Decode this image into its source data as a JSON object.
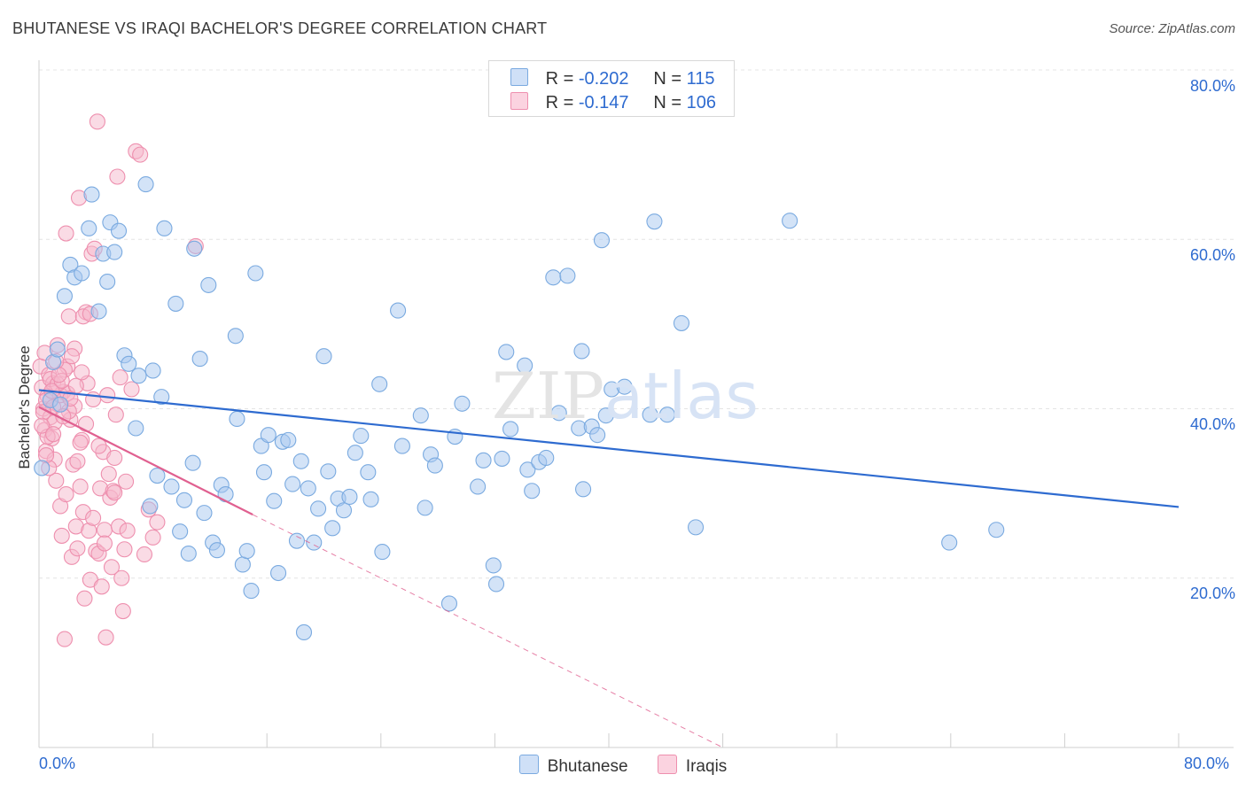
{
  "title": "BHUTANESE VS IRAQI BACHELOR'S DEGREE CORRELATION CHART",
  "source": "Source: ZipAtlas.com",
  "watermark": {
    "zip": "ZIP",
    "atlas": "atlas"
  },
  "legend": {
    "rows": [
      {
        "r_label": "R =",
        "r_value": "-0.202",
        "n_label": "N =",
        "n_value": "115",
        "color": "#a8c8f0"
      },
      {
        "r_label": "R =",
        "r_value": "-0.147",
        "n_label": "N =",
        "n_value": "106",
        "color": "#f5b8cc"
      }
    ]
  },
  "colors": {
    "blue_fill": "#a8c8f0",
    "blue_stroke": "#7aaae0",
    "blue_line": "#2e6bd0",
    "pink_fill": "#f5b8cc",
    "pink_stroke": "#ee8fae",
    "pink_line": "#e06090",
    "tick_text": "#2e6bd0",
    "grid": "#e4e4e4"
  },
  "chart_data": {
    "type": "scatter",
    "title": "BHUTANESE VS IRAQI BACHELOR'S DEGREE CORRELATION CHART",
    "xlabel": "",
    "ylabel": "Bachelor's Degree",
    "xlim": [
      0,
      80
    ],
    "ylim": [
      0,
      80
    ],
    "x_tick_labels": [
      "0.0%",
      "80.0%"
    ],
    "y_tick_labels": [
      "20.0%",
      "40.0%",
      "60.0%",
      "80.0%"
    ],
    "y_ticks": [
      20,
      40,
      60,
      80
    ],
    "grid": true,
    "legend_position": "top-center",
    "series": [
      {
        "name": "Bhutanese",
        "trend": {
          "x": [
            0,
            80
          ],
          "y": [
            42.2,
            28.4
          ]
        },
        "points": [
          [
            0.2,
            33
          ],
          [
            0.8,
            41
          ],
          [
            1.0,
            45.5
          ],
          [
            1.3,
            47
          ],
          [
            1.5,
            40.5
          ],
          [
            1.8,
            53.3
          ],
          [
            2.2,
            57
          ],
          [
            2.5,
            55.5
          ],
          [
            3.0,
            56
          ],
          [
            3.7,
            65.3
          ],
          [
            3.5,
            61.3
          ],
          [
            4.2,
            51.5
          ],
          [
            4.5,
            58.3
          ],
          [
            4.8,
            55
          ],
          [
            5.0,
            62
          ],
          [
            5.3,
            58.5
          ],
          [
            5.6,
            61
          ],
          [
            6.0,
            46.3
          ],
          [
            6.3,
            45.3
          ],
          [
            6.8,
            37.7
          ],
          [
            7.0,
            43.9
          ],
          [
            7.5,
            66.5
          ],
          [
            7.8,
            28.5
          ],
          [
            8.0,
            44.5
          ],
          [
            8.3,
            32.1
          ],
          [
            8.6,
            41.4
          ],
          [
            8.8,
            61.3
          ],
          [
            9.3,
            30.8
          ],
          [
            9.6,
            52.4
          ],
          [
            9.9,
            25.5
          ],
          [
            10.2,
            29.2
          ],
          [
            10.5,
            22.9
          ],
          [
            10.8,
            33.6
          ],
          [
            10.9,
            58.9
          ],
          [
            11.3,
            45.9
          ],
          [
            11.6,
            27.7
          ],
          [
            11.9,
            54.6
          ],
          [
            12.2,
            24.2
          ],
          [
            12.5,
            23.3
          ],
          [
            12.8,
            31.0
          ],
          [
            13.1,
            29.9
          ],
          [
            13.8,
            48.6
          ],
          [
            13.9,
            38.8
          ],
          [
            14.3,
            21.6
          ],
          [
            14.6,
            23.2
          ],
          [
            14.9,
            18.5
          ],
          [
            15.2,
            56.0
          ],
          [
            15.6,
            35.6
          ],
          [
            15.8,
            32.5
          ],
          [
            16.1,
            36.9
          ],
          [
            16.5,
            29.1
          ],
          [
            16.8,
            20.6
          ],
          [
            17.1,
            36.1
          ],
          [
            17.5,
            36.3
          ],
          [
            17.8,
            31.1
          ],
          [
            18.1,
            24.4
          ],
          [
            18.4,
            33.8
          ],
          [
            18.6,
            13.6
          ],
          [
            18.9,
            30.6
          ],
          [
            19.3,
            24.2
          ],
          [
            19.6,
            28.2
          ],
          [
            20.0,
            46.2
          ],
          [
            20.3,
            32.6
          ],
          [
            20.6,
            25.9
          ],
          [
            21.0,
            29.4
          ],
          [
            21.4,
            28.0
          ],
          [
            21.8,
            29.6
          ],
          [
            22.2,
            34.8
          ],
          [
            22.6,
            36.8
          ],
          [
            23.1,
            32.5
          ],
          [
            23.3,
            29.3
          ],
          [
            23.9,
            42.9
          ],
          [
            24.1,
            23.1
          ],
          [
            25.2,
            51.6
          ],
          [
            25.5,
            35.6
          ],
          [
            26.8,
            39.2
          ],
          [
            27.1,
            28.3
          ],
          [
            27.5,
            34.6
          ],
          [
            27.8,
            33.3
          ],
          [
            28.8,
            17.0
          ],
          [
            29.2,
            36.7
          ],
          [
            29.7,
            40.6
          ],
          [
            30.8,
            30.8
          ],
          [
            31.2,
            33.9
          ],
          [
            31.9,
            21.5
          ],
          [
            32.1,
            19.3
          ],
          [
            32.5,
            34.1
          ],
          [
            32.8,
            46.7
          ],
          [
            33.1,
            37.6
          ],
          [
            34.1,
            45.1
          ],
          [
            34.3,
            32.8
          ],
          [
            34.6,
            30.3
          ],
          [
            35.1,
            33.7
          ],
          [
            35.6,
            34.2
          ],
          [
            36.1,
            55.5
          ],
          [
            36.5,
            39.5
          ],
          [
            37.1,
            55.7
          ],
          [
            37.9,
            37.7
          ],
          [
            38.1,
            46.8
          ],
          [
            38.2,
            30.5
          ],
          [
            38.8,
            37.9
          ],
          [
            39.2,
            36.9
          ],
          [
            39.5,
            59.9
          ],
          [
            39.8,
            39.2
          ],
          [
            40.2,
            42.3
          ],
          [
            41.1,
            42.6
          ],
          [
            42.9,
            39.3
          ],
          [
            43.2,
            62.1
          ],
          [
            44.1,
            39.3
          ],
          [
            45.1,
            50.1
          ],
          [
            46.1,
            26.0
          ],
          [
            63.9,
            24.2
          ],
          [
            67.2,
            25.7
          ],
          [
            52.7,
            62.2
          ]
        ]
      },
      {
        "name": "Iraqis",
        "trend": {
          "x": [
            0,
            15
          ],
          "y": [
            40.2,
            27.5
          ]
        },
        "trend_dashed": {
          "x": [
            15,
            48
          ],
          "y": [
            27.5,
            0
          ]
        },
        "points": [
          [
            0.1,
            45
          ],
          [
            0.2,
            42.5
          ],
          [
            0.3,
            40
          ],
          [
            0.4,
            37.5
          ],
          [
            0.5,
            35
          ],
          [
            0.6,
            41.5
          ],
          [
            0.7,
            44
          ],
          [
            0.8,
            39
          ],
          [
            0.9,
            36.5
          ],
          [
            1.0,
            43
          ],
          [
            1.1,
            34
          ],
          [
            1.2,
            31.5
          ],
          [
            1.3,
            47.5
          ],
          [
            1.4,
            40.5
          ],
          [
            1.5,
            28.5
          ],
          [
            1.6,
            25
          ],
          [
            1.7,
            42
          ],
          [
            1.8,
            12.8
          ],
          [
            1.9,
            60.7
          ],
          [
            2.0,
            45
          ],
          [
            2.1,
            50.9
          ],
          [
            2.2,
            38.7
          ],
          [
            2.3,
            22.5
          ],
          [
            2.4,
            33.4
          ],
          [
            2.5,
            47.1
          ],
          [
            2.6,
            26.1
          ],
          [
            2.7,
            23.5
          ],
          [
            2.8,
            64.9
          ],
          [
            2.9,
            30.8
          ],
          [
            3.0,
            36.3
          ],
          [
            3.1,
            27.8
          ],
          [
            3.2,
            17.6
          ],
          [
            3.3,
            51.4
          ],
          [
            3.4,
            43.0
          ],
          [
            3.5,
            25.6
          ],
          [
            3.6,
            19.8
          ],
          [
            3.7,
            58.3
          ],
          [
            3.8,
            41.1
          ],
          [
            3.9,
            58.9
          ],
          [
            4.0,
            23.2
          ],
          [
            4.1,
            73.9
          ],
          [
            4.2,
            22.9
          ],
          [
            4.3,
            30.6
          ],
          [
            4.4,
            19.0
          ],
          [
            4.5,
            34.9
          ],
          [
            4.6,
            25.7
          ],
          [
            4.7,
            13.0
          ],
          [
            4.8,
            41.6
          ],
          [
            4.9,
            32.3
          ],
          [
            5.0,
            29.5
          ],
          [
            5.1,
            21.3
          ],
          [
            5.2,
            30.3
          ],
          [
            5.3,
            34.2
          ],
          [
            5.4,
            39.3
          ],
          [
            5.5,
            67.4
          ],
          [
            5.6,
            26.1
          ],
          [
            5.7,
            43.7
          ],
          [
            5.8,
            20.0
          ],
          [
            5.9,
            16.1
          ],
          [
            6.0,
            23.4
          ],
          [
            6.2,
            25.6
          ],
          [
            6.5,
            42.3
          ],
          [
            6.8,
            70.4
          ],
          [
            7.1,
            70.0
          ],
          [
            7.4,
            22.8
          ],
          [
            7.7,
            28.1
          ],
          [
            8.0,
            24.8
          ],
          [
            8.3,
            26.6
          ],
          [
            11.0,
            59.2
          ],
          [
            0.5,
            41.0
          ],
          [
            1.0,
            40.2
          ],
          [
            1.5,
            41.6
          ],
          [
            2.0,
            41.8
          ],
          [
            0.3,
            39.6
          ],
          [
            0.8,
            43.5
          ],
          [
            1.3,
            42.9
          ],
          [
            1.8,
            44.6
          ],
          [
            2.3,
            46.2
          ],
          [
            2.5,
            40.3
          ],
          [
            0.6,
            36.7
          ],
          [
            1.1,
            38.4
          ],
          [
            0.9,
            42.1
          ],
          [
            1.6,
            43.3
          ],
          [
            2.1,
            39.7
          ],
          [
            1.2,
            45.6
          ],
          [
            0.4,
            46.6
          ],
          [
            3.1,
            50.9
          ],
          [
            3.6,
            51.2
          ],
          [
            4.2,
            35.6
          ],
          [
            4.6,
            24.1
          ],
          [
            5.3,
            30.1
          ],
          [
            6.1,
            31.4
          ],
          [
            2.7,
            33.8
          ],
          [
            3.3,
            38.2
          ],
          [
            1.9,
            29.9
          ],
          [
            0.7,
            33.0
          ],
          [
            2.9,
            36.0
          ],
          [
            3.8,
            27.1
          ],
          [
            1.4,
            44.0
          ],
          [
            2.2,
            41.2
          ],
          [
            0.2,
            38.0
          ],
          [
            2.6,
            42.7
          ],
          [
            1.7,
            39.1
          ],
          [
            3.0,
            44.3
          ],
          [
            0.5,
            34.5
          ],
          [
            1.0,
            37.0
          ]
        ]
      }
    ]
  },
  "bottom_legend": [
    {
      "label": "Bhutanese",
      "color": "#a8c8f0"
    },
    {
      "label": "Iraqis",
      "color": "#f5b8cc"
    }
  ]
}
